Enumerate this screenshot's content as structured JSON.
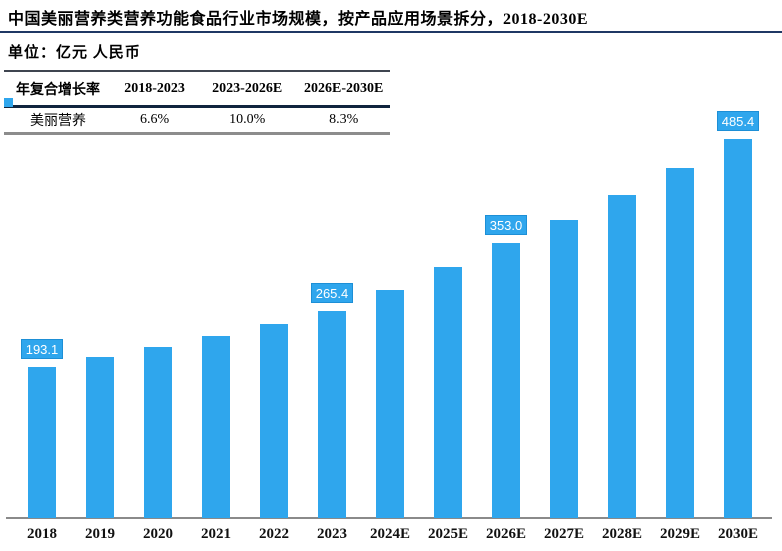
{
  "title": "中国美丽营养类营养功能食品行业市场规模，按产品应用场景拆分，2018-2030E",
  "unit_label": "单位：亿元 人民币",
  "cagr_table": {
    "headers": [
      "年复合增长率",
      "2018-2023",
      "2023-2026E",
      "2026E-2030E"
    ],
    "rows": [
      {
        "label": "美丽营养",
        "values": [
          "6.6%",
          "10.0%",
          "8.3%"
        ]
      }
    ]
  },
  "legend": {
    "series_name": "美丽营养",
    "swatch_color": "#2fa6ed"
  },
  "colors": {
    "bar": "#2fa6ed",
    "title_rule": "#1f3864",
    "table_mid_rule": "#10243e",
    "table_bottom_rule": "#8c8c8c",
    "axis_line": "#8a8a8a",
    "data_label_text": "#ffffff"
  },
  "chart_data": {
    "type": "bar",
    "title": "中国美丽营养类营养功能食品行业市场规模，按产品应用场景拆分，2018-2030E",
    "ylabel": "亿元 人民币",
    "xlabel": "",
    "ylim": [
      0,
      500
    ],
    "grid": false,
    "legend_position": "none",
    "categories": [
      "2018",
      "2019",
      "2020",
      "2021",
      "2022",
      "2023",
      "2024E",
      "2025E",
      "2026E",
      "2027E",
      "2028E",
      "2029E",
      "2030E"
    ],
    "series": [
      {
        "name": "美丽营养",
        "values": [
          193.1,
          205.8,
          219.4,
          233.9,
          249.3,
          265.4,
          291.9,
          321.2,
          353.0,
          382.3,
          414.0,
          448.4,
          485.4
        ]
      }
    ],
    "data_labels": [
      "193.1",
      null,
      null,
      null,
      null,
      "265.4",
      null,
      null,
      "353.0",
      null,
      null,
      null,
      "485.4"
    ],
    "cagr_annotations": {
      "2018-2023": "6.6%",
      "2023-2026E": "10.0%",
      "2026E-2030E": "8.3%"
    }
  }
}
